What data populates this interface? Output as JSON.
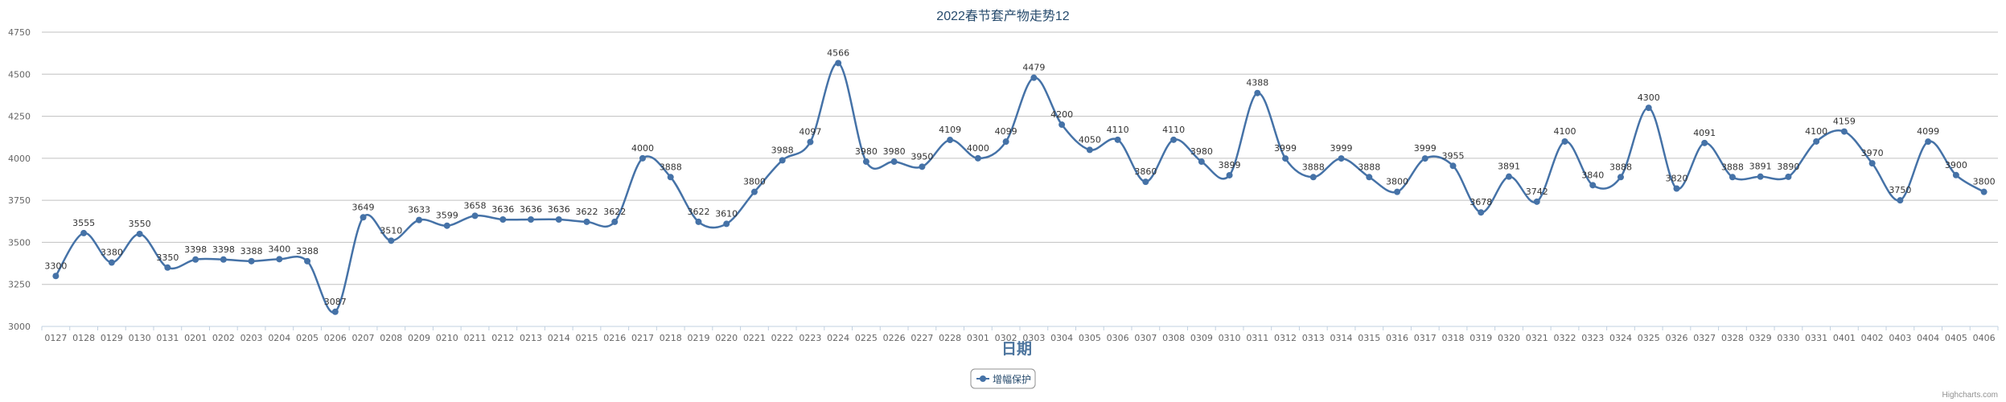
{
  "chart_data": {
    "type": "line",
    "title": "2022春节套产物走势12",
    "xlabel": "日期",
    "ylabel": "",
    "ylim": [
      3000,
      4750
    ],
    "yticks": [
      3000,
      3250,
      3500,
      3750,
      4000,
      4250,
      4500,
      4750
    ],
    "grid": true,
    "smooth": true,
    "legend_position": "bottom-center",
    "categories": [
      "0127",
      "0128",
      "0129",
      "0130",
      "0131",
      "0201",
      "0202",
      "0203",
      "0204",
      "0205",
      "0206",
      "0207",
      "0208",
      "0209",
      "0210",
      "0211",
      "0212",
      "0213",
      "0214",
      "0215",
      "0216",
      "0217",
      "0218",
      "0219",
      "0220",
      "0221",
      "0222",
      "0223",
      "0224",
      "0225",
      "0226",
      "0227",
      "0228",
      "0301",
      "0302",
      "0303",
      "0304",
      "0305",
      "0306",
      "0307",
      "0308",
      "0309",
      "0310",
      "0311",
      "0312",
      "0313",
      "0314",
      "0315",
      "0316",
      "0317",
      "0318",
      "0319",
      "0320",
      "0321",
      "0322",
      "0323",
      "0324",
      "0325",
      "0326",
      "0327",
      "0328",
      "0329",
      "0330",
      "0331",
      "0401",
      "0402",
      "0403",
      "0404",
      "0405",
      "0406"
    ],
    "series": [
      {
        "name": "增幅保护",
        "color": "#4572A7",
        "values": [
          3300,
          3555,
          3380,
          3550,
          3350,
          3398,
          3398,
          3388,
          3400,
          3388,
          3087,
          3649,
          3510,
          3633,
          3599,
          3658,
          3636,
          3636,
          3636,
          3622,
          3622,
          4000,
          3888,
          3622,
          3610,
          3800,
          3988,
          4097,
          4566,
          3980,
          3980,
          3950,
          4109,
          4000,
          4099,
          4479,
          4200,
          4050,
          4110,
          3860,
          4110,
          3980,
          3899,
          4388,
          3999,
          3888,
          3999,
          3888,
          3800,
          3999,
          3955,
          3678,
          3891,
          3742,
          4100,
          3840,
          3888,
          4300,
          3820,
          4091,
          3888,
          3891,
          3890,
          4100,
          4159,
          3970,
          3750,
          4099,
          3900,
          3800
        ]
      }
    ],
    "credit": "Highcharts.com"
  }
}
